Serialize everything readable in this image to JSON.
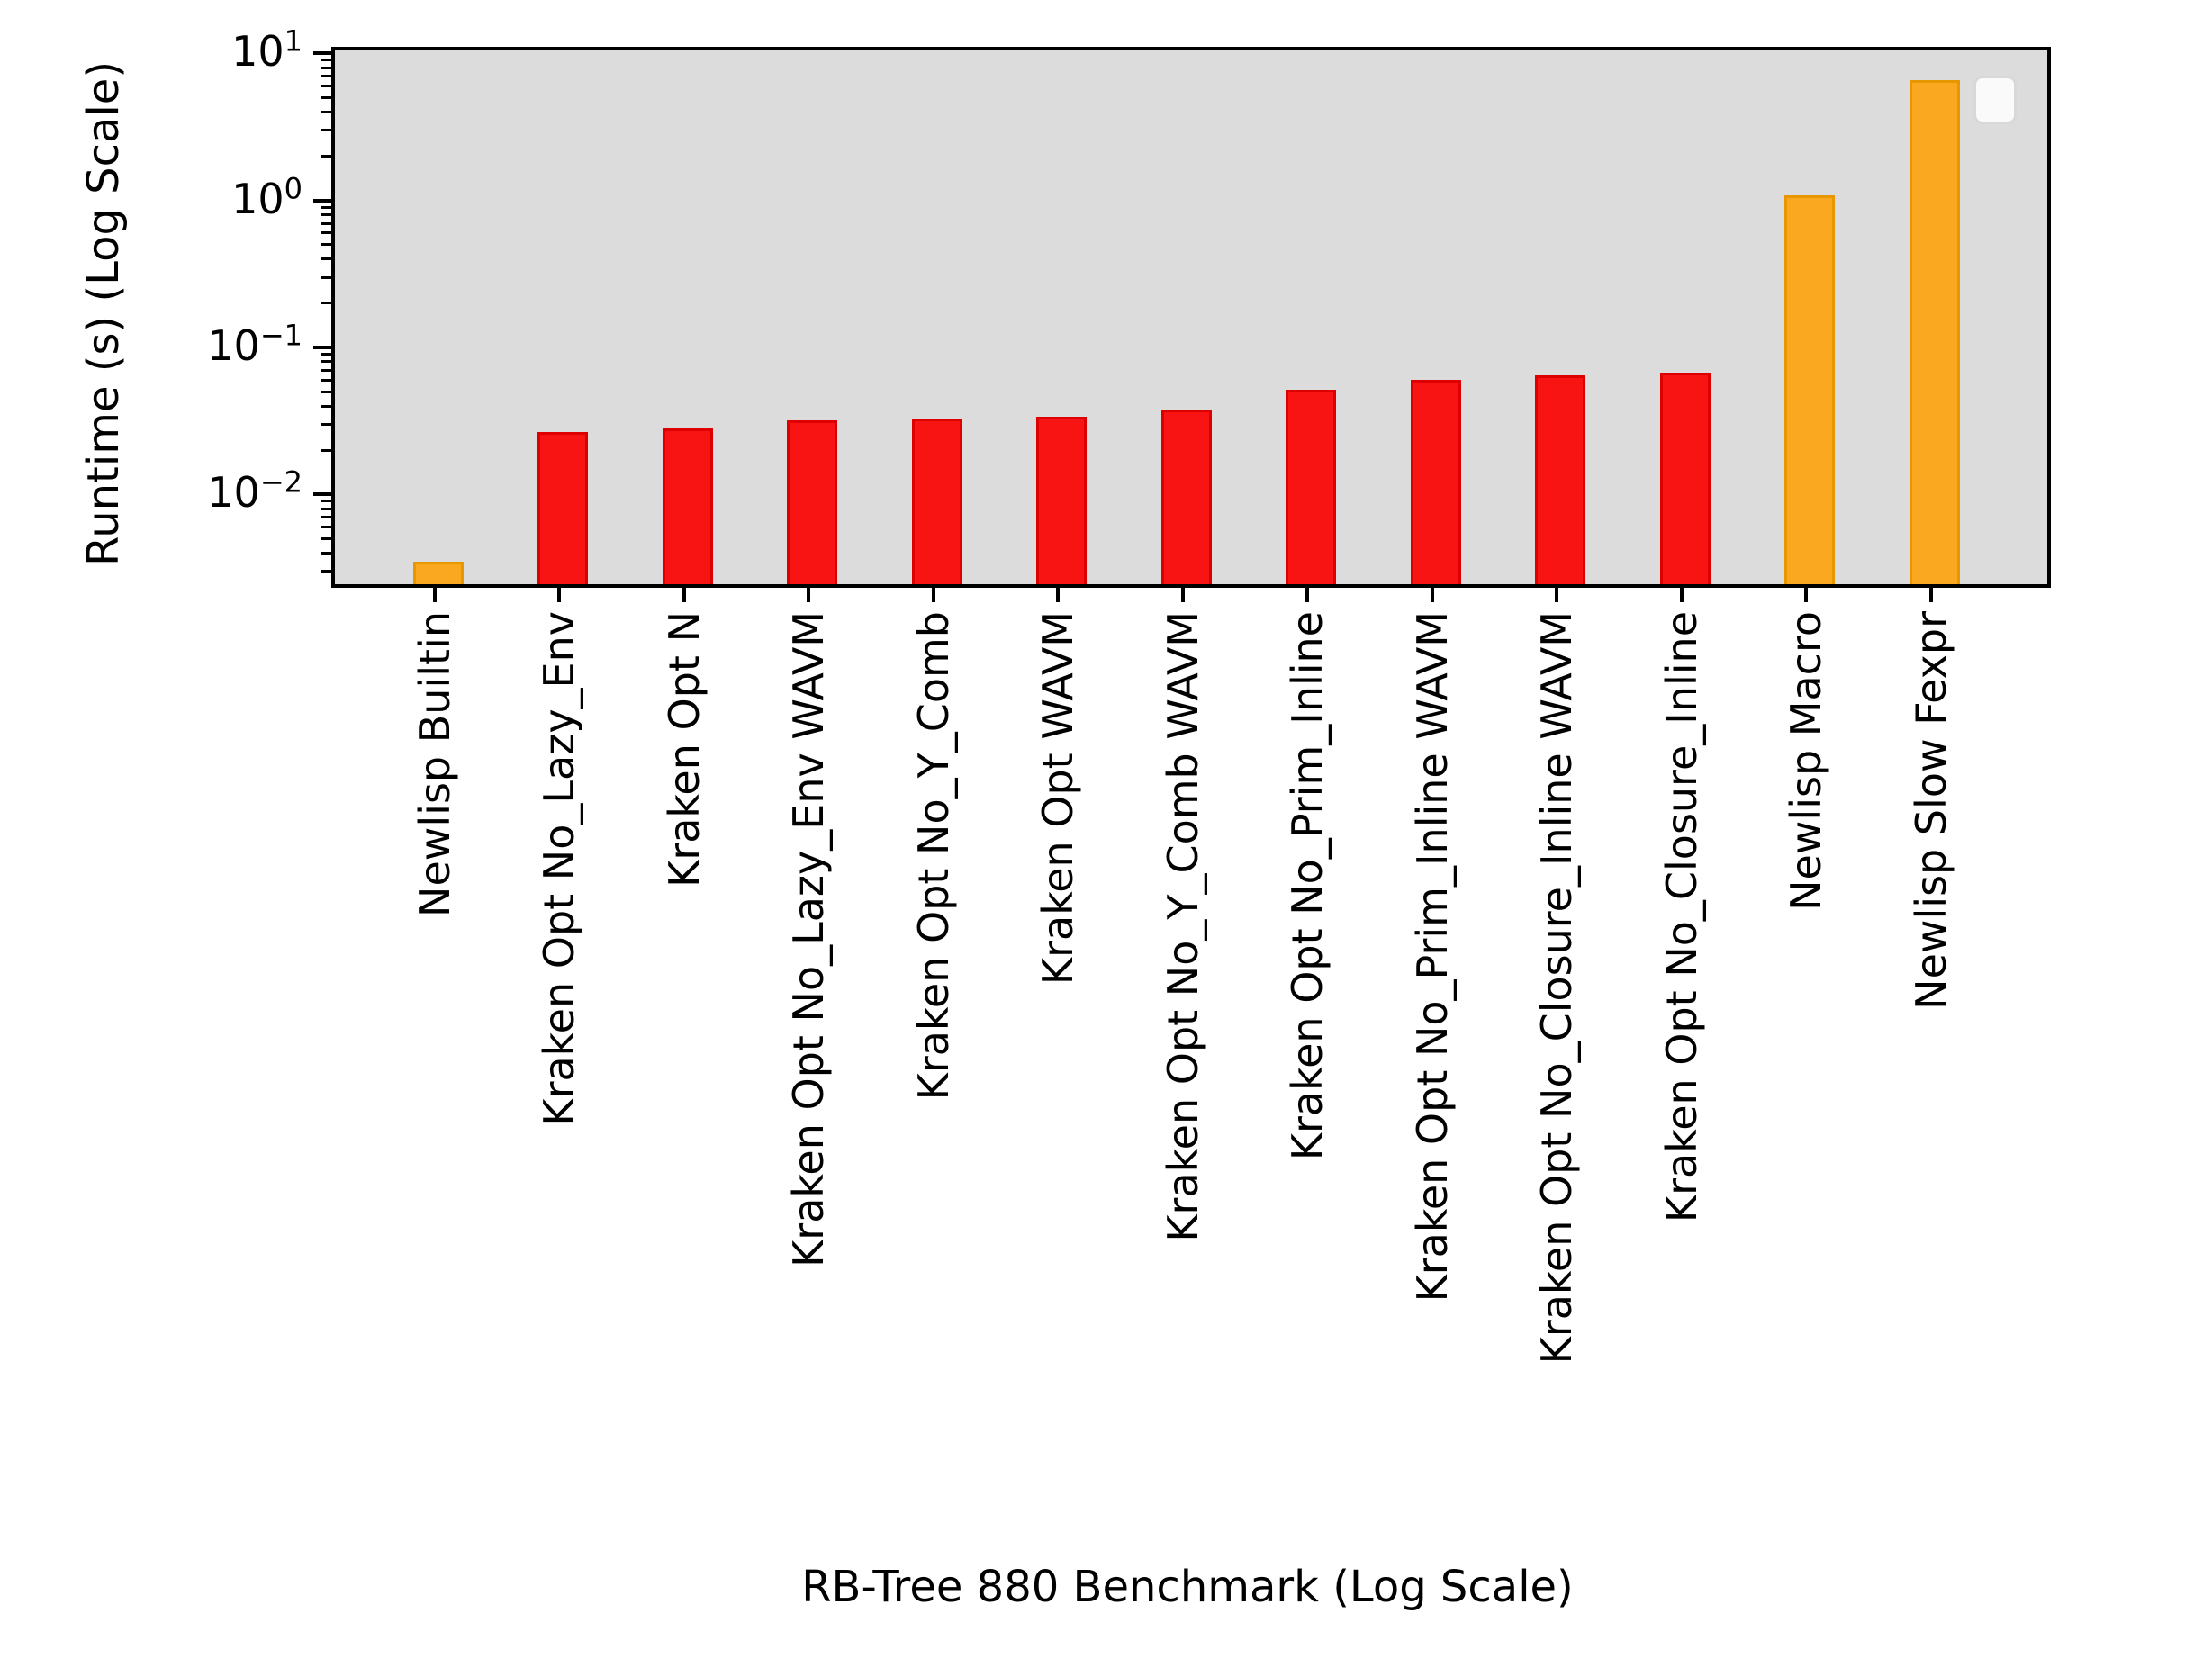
{
  "figure": {
    "background": "#ffffff",
    "plot_background": "#dcdcdc"
  },
  "chart_data": {
    "type": "bar",
    "title": "",
    "xlabel": "RB-Tree 880 Benchmark (Log Scale)",
    "ylabel": "Runtime (s) (Log Scale)",
    "y_scale": "log",
    "ylim": [
      0.0026,
      11.1
    ],
    "grid": false,
    "legend_position": "upper right",
    "legend_entries": [],
    "ytick_labels": [
      "10^1",
      "10^0",
      "10^-1",
      "10^-2"
    ],
    "ytick_values": [
      10,
      1,
      0.1,
      0.01
    ],
    "categories": [
      "Newlisp Builtin",
      "Kraken Opt No_Lazy_Env",
      "Kraken Opt N",
      "Kraken Opt No_Lazy_Env WAVM",
      "Kraken Opt No_Y_Comb",
      "Kraken Opt WAVM",
      "Kraken Opt No_Y_Comb WAVM",
      "Kraken Opt No_Prim_Inline",
      "Kraken Opt No_Prim_Inline WAVM",
      "Kraken Opt No_Closure_Inline WAVM",
      "Kraken Opt No_Closure_Inline",
      "Newlisp Macro",
      "Newlisp Slow Fexpr"
    ],
    "values": [
      0.0037,
      0.028,
      0.03,
      0.034,
      0.035,
      0.036,
      0.04,
      0.055,
      0.064,
      0.068,
      0.071,
      1.15,
      7.0
    ],
    "bar_color_keys": [
      "newlisp",
      "kraken",
      "kraken",
      "kraken",
      "kraken",
      "kraken",
      "kraken",
      "kraken",
      "kraken",
      "kraken",
      "kraken",
      "newlisp",
      "newlisp"
    ],
    "palette": {
      "kraken_fill": "#f91414",
      "kraken_edge": "#dd0000",
      "newlisp_fill": "#faa820",
      "newlisp_edge": "#e89700"
    }
  }
}
